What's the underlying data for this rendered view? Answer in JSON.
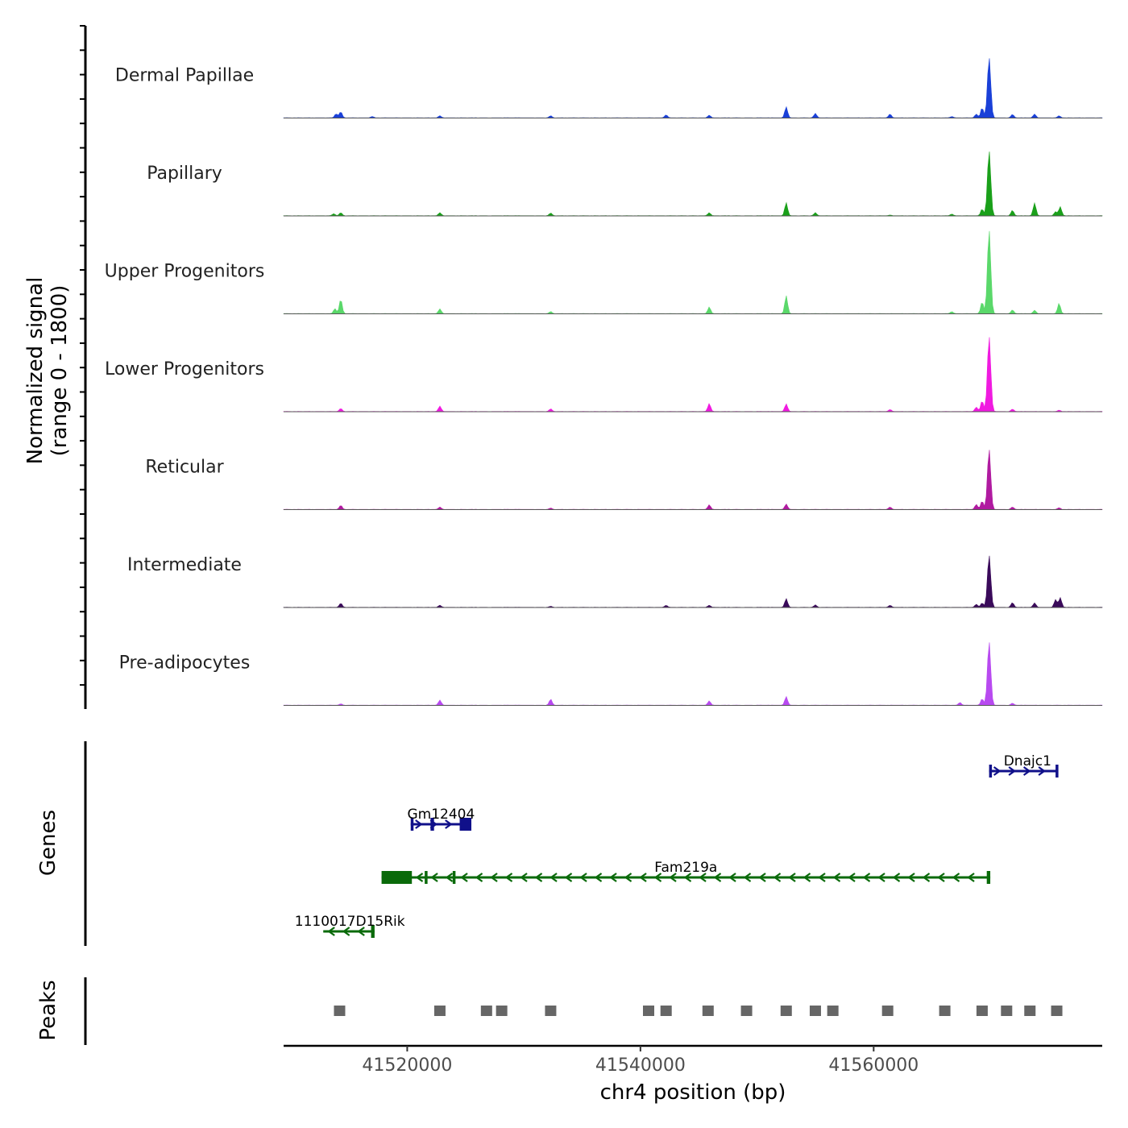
{
  "chart_data": {
    "type": "area",
    "title": "",
    "xlabel": "chr4 position (bp)",
    "x_ticks": [
      41520000,
      41540000,
      41560000
    ],
    "xlim": [
      41509400,
      41579600
    ],
    "coverage": {
      "ylabel_line1": "Normalized signal",
      "ylabel_line2": "(range 0 - 1800)",
      "ylim": [
        0,
        1800
      ],
      "series": [
        {
          "name": "Dermal Papillae",
          "color": "#1a40d8",
          "peaks": [
            [
              41513900,
              120
            ],
            [
              41514300,
              180
            ],
            [
              41517000,
              40
            ],
            [
              41522800,
              60
            ],
            [
              41532300,
              60
            ],
            [
              41542200,
              90
            ],
            [
              41545900,
              80
            ],
            [
              41552500,
              330
            ],
            [
              41555000,
              130
            ],
            [
              41561400,
              110
            ],
            [
              41566700,
              40
            ],
            [
              41568800,
              110
            ],
            [
              41569300,
              300
            ],
            [
              41569900,
              1800
            ],
            [
              41571900,
              100
            ],
            [
              41573800,
              110
            ],
            [
              41575900,
              60
            ]
          ]
        },
        {
          "name": "Papillary",
          "color": "#1aa01a",
          "peaks": [
            [
              41513700,
              60
            ],
            [
              41514300,
              90
            ],
            [
              41522800,
              90
            ],
            [
              41532300,
              80
            ],
            [
              41545900,
              90
            ],
            [
              41552500,
              390
            ],
            [
              41555000,
              90
            ],
            [
              41561400,
              20
            ],
            [
              41566700,
              50
            ],
            [
              41569300,
              200
            ],
            [
              41569900,
              1940
            ],
            [
              41571900,
              160
            ],
            [
              41573800,
              380
            ],
            [
              41575600,
              120
            ],
            [
              41576000,
              270
            ]
          ]
        },
        {
          "name": "Upper Progenitors",
          "color": "#5ad86a",
          "peaks": [
            [
              41513800,
              150
            ],
            [
              41514300,
              430
            ],
            [
              41522800,
              140
            ],
            [
              41532300,
              60
            ],
            [
              41545900,
              200
            ],
            [
              41552500,
              540
            ],
            [
              41566700,
              60
            ],
            [
              41569300,
              350
            ],
            [
              41569900,
              2500
            ],
            [
              41571900,
              110
            ],
            [
              41573800,
              100
            ],
            [
              41575900,
              310
            ]
          ]
        },
        {
          "name": "Lower Progenitors",
          "color": "#f01ae0",
          "peaks": [
            [
              41514300,
              90
            ],
            [
              41522800,
              160
            ],
            [
              41532300,
              80
            ],
            [
              41545900,
              240
            ],
            [
              41552500,
              230
            ],
            [
              41561400,
              60
            ],
            [
              41568800,
              130
            ],
            [
              41569300,
              320
            ],
            [
              41569900,
              2250
            ],
            [
              41571900,
              70
            ],
            [
              41575900,
              40
            ]
          ]
        },
        {
          "name": "Reticular",
          "color": "#b01aa0",
          "peaks": [
            [
              41514300,
              120
            ],
            [
              41522800,
              70
            ],
            [
              41532300,
              40
            ],
            [
              41545900,
              140
            ],
            [
              41552500,
              160
            ],
            [
              41561400,
              70
            ],
            [
              41568800,
              150
            ],
            [
              41569300,
              250
            ],
            [
              41569900,
              1800
            ],
            [
              41571900,
              70
            ],
            [
              41575900,
              50
            ]
          ]
        },
        {
          "name": "Intermediate",
          "color": "#3a0a5a",
          "peaks": [
            [
              41514300,
              120
            ],
            [
              41522800,
              60
            ],
            [
              41532300,
              30
            ],
            [
              41542200,
              60
            ],
            [
              41545900,
              60
            ],
            [
              41552500,
              260
            ],
            [
              41555000,
              70
            ],
            [
              41561400,
              60
            ],
            [
              41568800,
              90
            ],
            [
              41569300,
              130
            ],
            [
              41569900,
              1560
            ],
            [
              41571900,
              140
            ],
            [
              41573800,
              130
            ],
            [
              41575600,
              230
            ],
            [
              41576000,
              290
            ]
          ]
        },
        {
          "name": "Pre-adipocytes",
          "color": "#b84af0",
          "peaks": [
            [
              41514300,
              40
            ],
            [
              41522800,
              150
            ],
            [
              41532300,
              180
            ],
            [
              41545900,
              130
            ],
            [
              41552500,
              260
            ],
            [
              41567400,
              80
            ],
            [
              41569300,
              190
            ],
            [
              41569900,
              1900
            ],
            [
              41571900,
              60
            ]
          ]
        }
      ]
    },
    "genes": {
      "ylabel": "Genes",
      "items": [
        {
          "name": "Dnajc1",
          "strand": "+",
          "color": "#10108a",
          "start": 41569900,
          "end": 41575800,
          "row": 0,
          "exons": [
            [
              41569900,
              41570050
            ],
            [
              41575600,
              41575800
            ]
          ]
        },
        {
          "name": "Gm12404",
          "strand": "+",
          "color": "#10108a",
          "start": 41520300,
          "end": 41525500,
          "row": 1,
          "exons": [
            [
              41520300,
              41520500
            ],
            [
              41522000,
              41522300
            ],
            [
              41524500,
              41525500
            ]
          ]
        },
        {
          "name": "Fam219a",
          "strand": "-",
          "color": "#0a6a0a",
          "start": 41517800,
          "end": 41570000,
          "row": 2,
          "exons": [
            [
              41517800,
              41520400
            ],
            [
              41521500,
              41521700
            ],
            [
              41523900,
              41524100
            ],
            [
              41569700,
              41570000
            ]
          ]
        },
        {
          "name": "1110017D15Rik",
          "strand": "-",
          "color": "#0a6a0a",
          "start": 41512800,
          "end": 41517200,
          "row": 3,
          "exons": [
            [
              41516900,
              41517200
            ]
          ]
        }
      ]
    },
    "peaks": {
      "ylabel": "Peaks",
      "color": "#666666",
      "positions": [
        41514200,
        41522800,
        41526800,
        41528100,
        41532300,
        41540700,
        41542200,
        41545800,
        41549100,
        41552500,
        41555000,
        41556500,
        41561200,
        41566100,
        41569300,
        41571400,
        41573400,
        41575700
      ]
    }
  }
}
